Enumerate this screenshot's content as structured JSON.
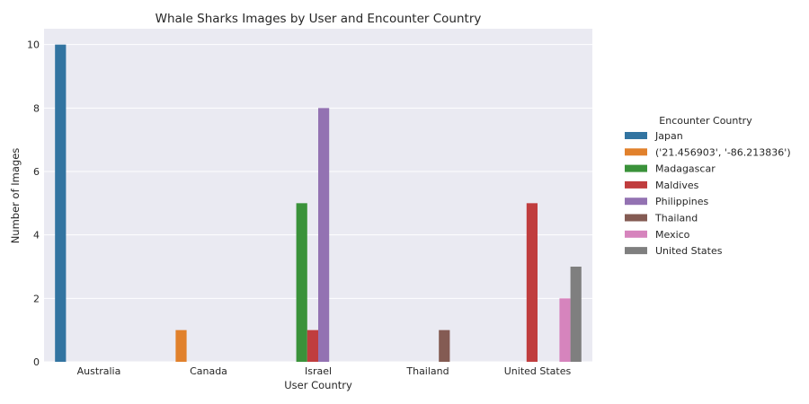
{
  "chart_data": {
    "type": "bar",
    "title": "Whale Sharks Images by User and Encounter Country",
    "xlabel": "User Country",
    "ylabel": "Number of Images",
    "categories": [
      "Australia",
      "Canada",
      "Israel",
      "Thailand",
      "United States"
    ],
    "ylim": [
      0,
      10.5
    ],
    "yticks": [
      0,
      2,
      4,
      6,
      8,
      10
    ],
    "grid": true,
    "legend": {
      "title": "Encounter Country",
      "placement": "right-outside"
    },
    "series": [
      {
        "name": "Japan",
        "color": "#3274a1",
        "values": [
          10,
          0,
          0,
          0,
          0
        ]
      },
      {
        "name": "('21.456903', '-86.213836')",
        "color": "#e1812c",
        "values": [
          0,
          1,
          0,
          0,
          0
        ]
      },
      {
        "name": "Madagascar",
        "color": "#3a923a",
        "values": [
          0,
          0,
          5,
          0,
          0
        ]
      },
      {
        "name": "Maldives",
        "color": "#c03d3e",
        "values": [
          0,
          0,
          1,
          0,
          5
        ]
      },
      {
        "name": "Philippines",
        "color": "#9372b2",
        "values": [
          0,
          0,
          8,
          0,
          0
        ]
      },
      {
        "name": "Thailand",
        "color": "#845b53",
        "values": [
          0,
          0,
          0,
          1,
          0
        ]
      },
      {
        "name": "Mexico",
        "color": "#d684bd",
        "values": [
          0,
          0,
          0,
          0,
          2
        ]
      },
      {
        "name": "United States",
        "color": "#7f7f7f",
        "values": [
          0,
          0,
          0,
          0,
          3
        ]
      }
    ]
  }
}
